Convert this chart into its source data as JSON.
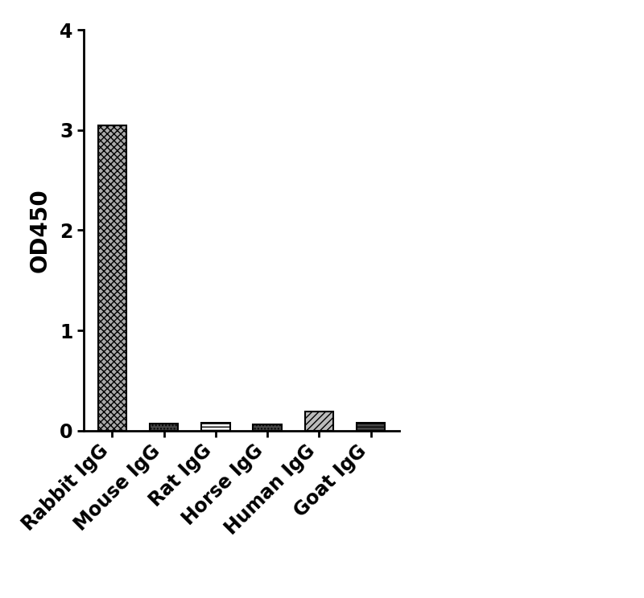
{
  "categories": [
    "Rabbit IgG",
    "Mouse IgG",
    "Rat IgG",
    "Horse IgG",
    "Human IgG",
    "Goat IgG"
  ],
  "values": [
    3.05,
    0.07,
    0.075,
    0.065,
    0.19,
    0.075
  ],
  "ylabel": "OD450",
  "ylim": [
    0,
    4
  ],
  "yticks": [
    0,
    1,
    2,
    3,
    4
  ],
  "background_color": "#ffffff",
  "bar_width": 0.55,
  "tick_label_fontsize": 17,
  "ylabel_fontsize": 20,
  "axis_linewidth": 2.0,
  "hatch_patterns": [
    "xx",
    "...",
    "",
    "...",
    "////",
    "---"
  ],
  "face_colors": [
    "#ffffff",
    "#555555",
    "#cccccc",
    "#555555",
    "#bbbbbb",
    "#999999"
  ],
  "edge_colors": [
    "#000000",
    "#000000",
    "#000000",
    "#000000",
    "#000000",
    "#000000"
  ]
}
